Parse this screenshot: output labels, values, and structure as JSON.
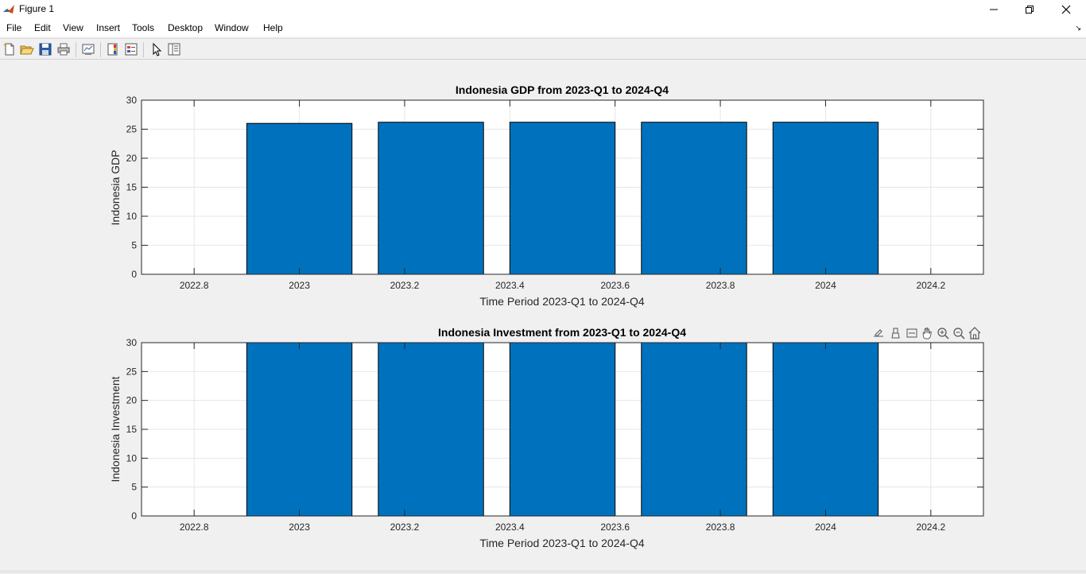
{
  "window": {
    "title": "Figure 1",
    "controls": {
      "minimize": "minimize-icon",
      "maximize": "restore-icon",
      "close": "close-icon"
    }
  },
  "menu": {
    "items": [
      "File",
      "Edit",
      "View",
      "Insert",
      "Tools",
      "Desktop",
      "Window",
      "Help"
    ]
  },
  "toolbar": {
    "buttons": [
      "new-figure-icon",
      "open-file-icon",
      "save-icon",
      "print-icon",
      "link-plot-icon",
      "insert-colorbar-icon",
      "insert-legend-icon",
      "edit-plot-icon",
      "property-inspector-icon"
    ]
  },
  "axes_toolbar": {
    "buttons": [
      "export-icon",
      "brush-icon",
      "datatip-icon",
      "pan-icon",
      "zoom-in-icon",
      "zoom-out-icon",
      "home-icon"
    ]
  },
  "colors": {
    "bar_fill": "#0072bd",
    "axes_bg": "#ffffff",
    "figure_bg": "#f0f0f0",
    "grid": "#e6e6e6"
  },
  "chart_data": [
    {
      "type": "bar",
      "title": "Indonesia GDP from 2023-Q1 to 2024-Q4",
      "xlabel": "Time Period 2023-Q1 to 2024-Q4",
      "ylabel": "Indonesia GDP",
      "x": [
        2023.0,
        2023.25,
        2023.5,
        2023.75,
        2024.0
      ],
      "values": [
        26.0,
        26.2,
        26.2,
        26.2,
        26.2
      ],
      "xlim": [
        2022.7,
        2024.3
      ],
      "ylim": [
        0,
        30
      ],
      "xticks": [
        2022.8,
        2023,
        2023.2,
        2023.4,
        2023.6,
        2023.8,
        2024,
        2024.2
      ],
      "xticklabels": [
        "2022.8",
        "2023",
        "2023.2",
        "2023.4",
        "2023.6",
        "2023.8",
        "2024",
        "2024.2"
      ],
      "yticks": [
        0,
        5,
        10,
        15,
        20,
        25,
        30
      ],
      "yticklabels": [
        "0",
        "5",
        "10",
        "15",
        "20",
        "25",
        "30"
      ],
      "bar_width": 0.2,
      "grid": true
    },
    {
      "type": "bar",
      "title": "Indonesia Investment from 2023-Q1 to 2024-Q4",
      "xlabel": "Time Period 2023-Q1 to 2024-Q4",
      "ylabel": "Indonesia Investment",
      "x": [
        2023.0,
        2023.25,
        2023.5,
        2023.75,
        2024.0
      ],
      "values": [
        30,
        30,
        30,
        30,
        30
      ],
      "xlim": [
        2022.7,
        2024.3
      ],
      "ylim": [
        0,
        30
      ],
      "xticks": [
        2022.8,
        2023,
        2023.2,
        2023.4,
        2023.6,
        2023.8,
        2024,
        2024.2
      ],
      "xticklabels": [
        "2022.8",
        "2023",
        "2023.2",
        "2023.4",
        "2023.6",
        "2023.8",
        "2024",
        "2024.2"
      ],
      "yticks": [
        0,
        5,
        10,
        15,
        20,
        25,
        30
      ],
      "yticklabels": [
        "0",
        "5",
        "10",
        "15",
        "20",
        "25",
        "30"
      ],
      "bar_width": 0.2,
      "grid": true
    }
  ]
}
